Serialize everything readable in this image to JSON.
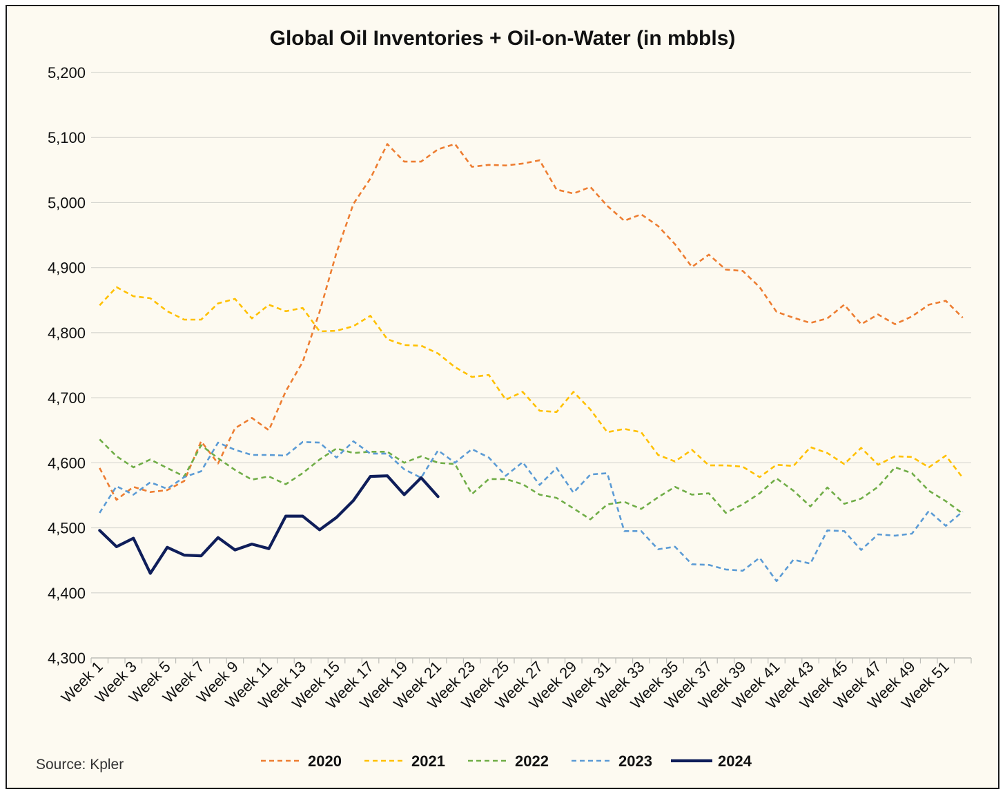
{
  "chart_data": {
    "type": "line",
    "title": "Global Oil Inventories + Oil-on-Water (in mbbls)",
    "xlabel": "",
    "ylabel": "",
    "ylim": [
      4300,
      5200
    ],
    "y_ticks": [
      4300,
      4400,
      4500,
      4600,
      4700,
      4800,
      4900,
      5000,
      5100,
      5200
    ],
    "y_tick_labels": [
      "4,300",
      "4,400",
      "4,500",
      "4,600",
      "4,700",
      "4,800",
      "4,900",
      "5,000",
      "5,100",
      "5,200"
    ],
    "x_tick_labels": [
      "Week 1",
      "Week 3",
      "Week 5",
      "Week 7",
      "Week 9",
      "Week 11",
      "Week 13",
      "Week 15",
      "Week 17",
      "Week 19",
      "Week 21",
      "Week 23",
      "Week 25",
      "Week 27",
      "Week 29",
      "Week 31",
      "Week 33",
      "Week 35",
      "Week 37",
      "Week 39",
      "Week 41",
      "Week 43",
      "Week 45",
      "Week 47",
      "Week 49",
      "Week 51"
    ],
    "grid": true,
    "legend_position": "bottom",
    "source": "Source: Kpler",
    "series": [
      {
        "name": "2020",
        "color": "#ED7D31",
        "dashed": true,
        "values": [
          4592,
          4543,
          4563,
          4555,
          4558,
          4572,
          4633,
          4599,
          4653,
          4669,
          4650,
          4710,
          4755,
          4832,
          4923,
          4998,
          5037,
          5090,
          5063,
          5063,
          5082,
          5090,
          5055,
          5058,
          5057,
          5060,
          5065,
          5020,
          5014,
          5024,
          4995,
          4972,
          4982,
          4964,
          4936,
          4901,
          4920,
          4897,
          4895,
          4870,
          4832,
          4823,
          4815,
          4822,
          4843,
          4813,
          4828,
          4813,
          4825,
          4843,
          4849,
          4823
        ]
      },
      {
        "name": "2021",
        "color": "#FFC000",
        "dashed": true,
        "values": [
          4842,
          4870,
          4856,
          4853,
          4833,
          4820,
          4820,
          4845,
          4852,
          4822,
          4843,
          4833,
          4838,
          4802,
          4803,
          4810,
          4826,
          4790,
          4781,
          4780,
          4768,
          4747,
          4732,
          4735,
          4697,
          4709,
          4680,
          4678,
          4709,
          4682,
          4647,
          4652,
          4647,
          4612,
          4602,
          4620,
          4596,
          4596,
          4594,
          4578,
          4597,
          4595,
          4624,
          4615,
          4598,
          4623,
          4597,
          4610,
          4609,
          4593,
          4611,
          4577
        ]
      },
      {
        "name": "2022",
        "color": "#70AD47",
        "dashed": true,
        "values": [
          4636,
          4610,
          4593,
          4605,
          4592,
          4579,
          4627,
          4607,
          4589,
          4574,
          4579,
          4567,
          4584,
          4605,
          4622,
          4615,
          4617,
          4617,
          4600,
          4610,
          4600,
          4598,
          4552,
          4575,
          4575,
          4567,
          4551,
          4546,
          4530,
          4513,
          4536,
          4540,
          4529,
          4547,
          4563,
          4551,
          4553,
          4523,
          4536,
          4553,
          4576,
          4557,
          4533,
          4562,
          4537,
          4545,
          4563,
          4593,
          4584,
          4557,
          4541,
          4522
        ]
      },
      {
        "name": "2023",
        "color": "#5B9BD5",
        "dashed": true,
        "values": [
          4523,
          4564,
          4551,
          4570,
          4560,
          4578,
          4587,
          4631,
          4620,
          4612,
          4612,
          4611,
          4632,
          4631,
          4608,
          4633,
          4614,
          4614,
          4590,
          4577,
          4619,
          4600,
          4621,
          4608,
          4580,
          4601,
          4566,
          4592,
          4554,
          4582,
          4584,
          4495,
          4495,
          4467,
          4471,
          4444,
          4443,
          4436,
          4434,
          4454,
          4418,
          4451,
          4445,
          4496,
          4495,
          4466,
          4490,
          4488,
          4491,
          4526,
          4503,
          4525
        ]
      },
      {
        "name": "2024",
        "color": "#0F1E5A",
        "dashed": false,
        "values": [
          4496,
          4471,
          4484,
          4430,
          4470,
          4458,
          4457,
          4485,
          4466,
          4475,
          4468,
          4518,
          4518,
          4497,
          4516,
          4542,
          4579,
          4580,
          4551,
          4577,
          4548
        ]
      }
    ]
  }
}
